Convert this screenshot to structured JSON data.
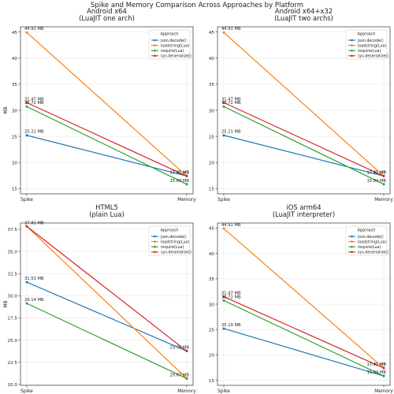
{
  "suptitle": "Spike and Memory Comparison Across Approaches by Platform",
  "legend_title": "Approach",
  "colors": {
    "json.decode()": "#1f77b4",
    "loadstring(Lua)": "#ff7f0e",
    "require(Lua)": "#2ca02c",
    "sys.deserialize()": "#d62728"
  },
  "chart_data": [
    {
      "type": "line",
      "title": "Android x64\n(LuaJIT one arch)",
      "categories": [
        "Spike",
        "Memory"
      ],
      "xlabel": "",
      "ylabel": "MB",
      "ylim": [
        14,
        46
      ],
      "yticks": [
        15,
        20,
        25,
        30,
        35,
        40,
        45
      ],
      "grid": true,
      "legend": "top-right",
      "series": [
        {
          "name": "json.decode()",
          "values": [
            25.21,
            17.41
          ],
          "labels": [
            "25.21 MB",
            "17.41 MB"
          ]
        },
        {
          "name": "loadstring(Lua)",
          "values": [
            44.91,
            17.41
          ],
          "labels": [
            "44.91 MB",
            "17.41 MB"
          ]
        },
        {
          "name": "require(Lua)",
          "values": [
            30.72,
            15.84
          ],
          "labels": [
            "30.72 MB",
            "15.84 MB"
          ]
        },
        {
          "name": "sys.deserialize()",
          "values": [
            31.47,
            17.41
          ],
          "labels": [
            "31.47 MB",
            "17.41 MB"
          ]
        }
      ]
    },
    {
      "type": "line",
      "title": "Android x64+x32\n(LuaJIT two archs)",
      "categories": [
        "Spike",
        "Memory"
      ],
      "xlabel": "",
      "ylabel": "",
      "ylim": [
        14,
        46
      ],
      "yticks": [
        15,
        20,
        25,
        30,
        35,
        40,
        45
      ],
      "grid": true,
      "legend": "top-right",
      "series": [
        {
          "name": "json.decode()",
          "values": [
            25.21,
            17.41
          ],
          "labels": [
            "25.21 MB",
            "17.41 MB"
          ]
        },
        {
          "name": "loadstring(Lua)",
          "values": [
            44.91,
            17.41
          ],
          "labels": [
            "44.91 MB",
            "17.41 MB"
          ]
        },
        {
          "name": "require(Lua)",
          "values": [
            30.72,
            15.84
          ],
          "labels": [
            "30.72 MB",
            "15.84 MB"
          ]
        },
        {
          "name": "sys.deserialize()",
          "values": [
            31.47,
            17.41
          ],
          "labels": [
            "31.47 MB",
            "17.41 MB"
          ]
        }
      ]
    },
    {
      "type": "line",
      "title": "HTML5\n(plain Lua)",
      "categories": [
        "Spike",
        "Memory"
      ],
      "xlabel": "",
      "ylabel": "MB",
      "ylim": [
        19.9,
        38.2
      ],
      "yticks": [
        20.0,
        22.5,
        25.0,
        27.5,
        30.0,
        32.5,
        35.0,
        37.5
      ],
      "tick_decimals": 1,
      "grid": true,
      "legend": "top-right",
      "series": [
        {
          "name": "json.decode()",
          "values": [
            31.53,
            23.76
          ],
          "labels": [
            "31.53 MB",
            "23.76 MB"
          ]
        },
        {
          "name": "loadstring(Lua)",
          "values": [
            37.82,
            20.67
          ],
          "labels": [
            "37.82 MB",
            "20.67 MB"
          ]
        },
        {
          "name": "require(Lua)",
          "values": [
            29.14,
            20.67
          ],
          "labels": [
            "29.14 MB",
            ""
          ]
        },
        {
          "name": "sys.deserialize()",
          "values": [
            37.82,
            23.76
          ],
          "labels": [
            "",
            ""
          ]
        }
      ]
    },
    {
      "type": "line",
      "title": "iOS arm64\n(LuaJIT interpreter)",
      "categories": [
        "Spike",
        "Memory"
      ],
      "xlabel": "",
      "ylabel": "",
      "ylim": [
        14,
        46
      ],
      "yticks": [
        15,
        20,
        25,
        30,
        35,
        40,
        45
      ],
      "grid": true,
      "legend": "top-right",
      "series": [
        {
          "name": "json.decode()",
          "values": [
            25.19,
            15.84
          ],
          "labels": [
            "25.19 MB",
            ""
          ]
        },
        {
          "name": "loadstring(Lua)",
          "values": [
            44.91,
            17.41
          ],
          "labels": [
            "44.91 MB",
            "17.41 MB"
          ]
        },
        {
          "name": "require(Lua)",
          "values": [
            30.72,
            15.84
          ],
          "labels": [
            "30.72 MB",
            "15.84 MB"
          ]
        },
        {
          "name": "sys.deserialize()",
          "values": [
            31.47,
            17.41
          ],
          "labels": [
            "31.47 MB",
            "17.41 MB"
          ]
        }
      ]
    }
  ]
}
